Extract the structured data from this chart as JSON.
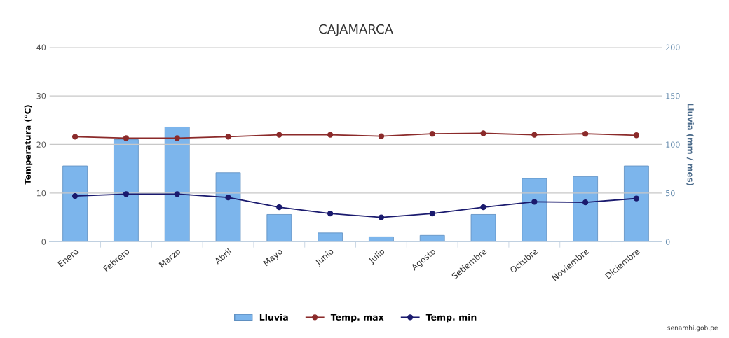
{
  "chart_data": {
    "type": "bar",
    "title": "CAJAMARCA",
    "ylabel": "Temperatura (°C)",
    "y2label": "Lluvia (mm / mes)",
    "categories": [
      "Enero",
      "Febrero",
      "Marzo",
      "Abril",
      "Mayo",
      "Junio",
      "Julio",
      "Agosto",
      "Setiembre",
      "Octubre",
      "Noviembre",
      "Diciembre"
    ],
    "series": [
      {
        "name": "Lluvia",
        "axis": "y2",
        "color": "#7cb5ec",
        "values": [
          78,
          105,
          118,
          71,
          28,
          9,
          5,
          6.5,
          28,
          65,
          67,
          78
        ]
      },
      {
        "name": "Temp. max",
        "type": "line",
        "axis": "y",
        "color": "#8b2a2a",
        "marker": "circle",
        "values": [
          21.6,
          21.3,
          21.3,
          21.6,
          22.0,
          22.0,
          21.7,
          22.2,
          22.3,
          22.0,
          22.2,
          21.9
        ]
      },
      {
        "name": "Temp. min",
        "type": "line",
        "axis": "y",
        "color": "#1a1a6e",
        "marker": "circle",
        "values": [
          9.4,
          9.8,
          9.8,
          9.1,
          7.1,
          5.8,
          5.0,
          5.8,
          7.1,
          8.2,
          8.1,
          8.9
        ]
      }
    ],
    "ylim": [
      0,
      40
    ],
    "yticks": [
      0,
      10,
      20,
      30,
      40
    ],
    "y2lim": [
      0,
      200
    ],
    "y2ticks": [
      0,
      50,
      100,
      150,
      200
    ],
    "grid": "y",
    "legend": "bottom",
    "annotations": [
      "senamhi.gob.pe"
    ]
  }
}
